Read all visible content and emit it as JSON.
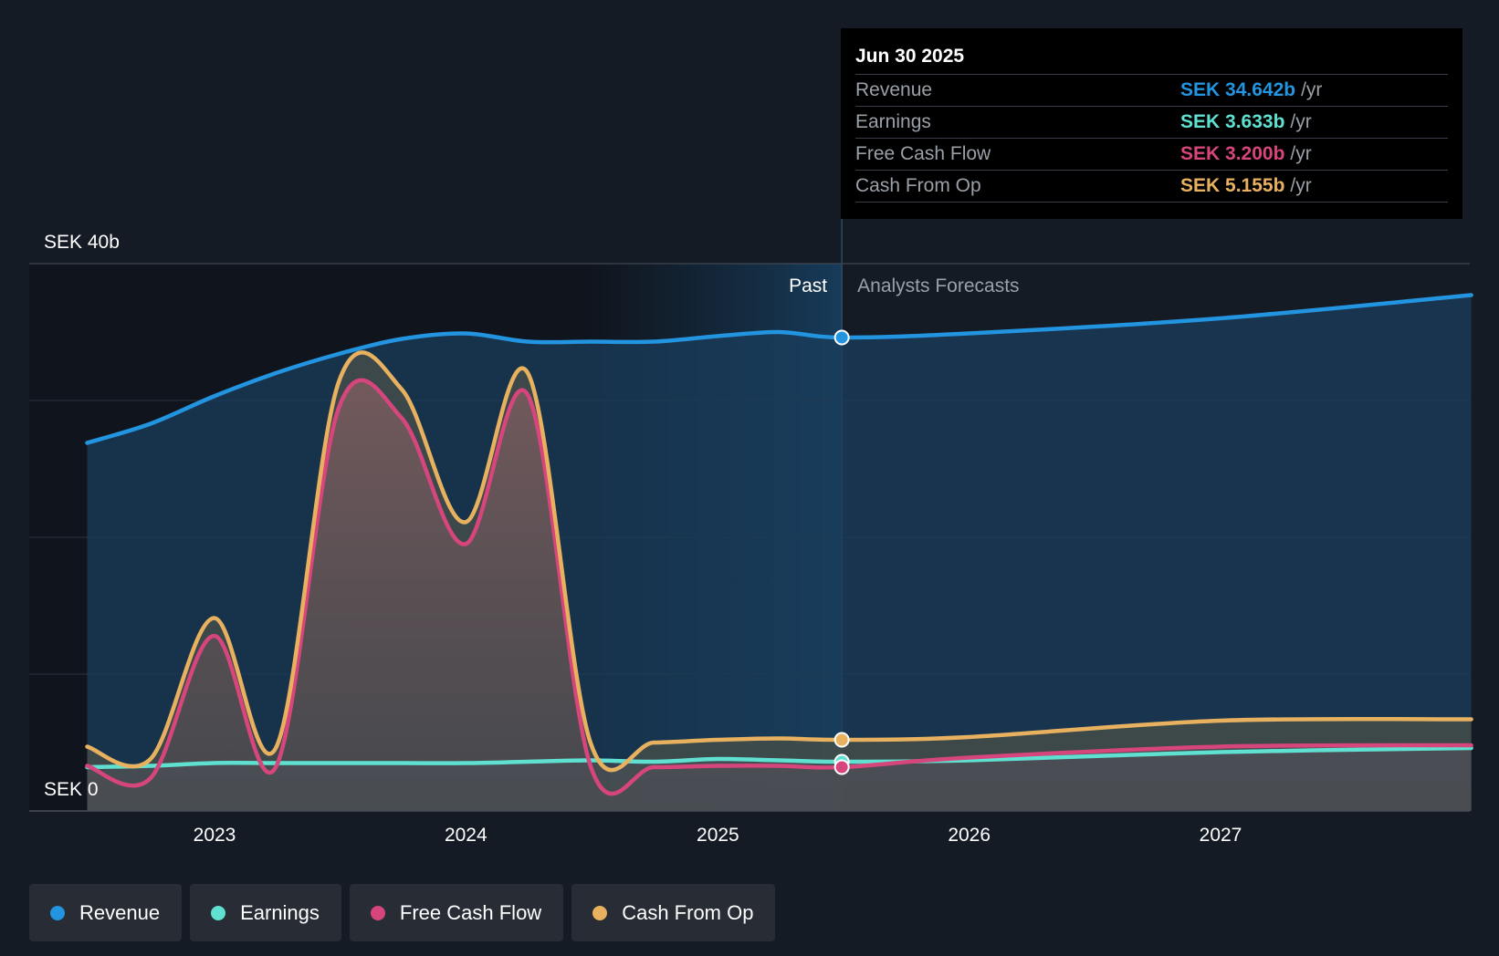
{
  "chart_data": {
    "type": "area",
    "ylim": [
      0,
      40
    ],
    "x_ticks": [
      "2023",
      "2024",
      "2025",
      "2026",
      "2027"
    ],
    "y_label_top": "SEK 40b",
    "y_label_bottom": "SEK 0",
    "past_label": "Past",
    "forecast_label": "Analysts Forecasts",
    "divider_date": "2025-06-30",
    "series": [
      {
        "name": "Revenue",
        "color": "#2394df",
        "points": [
          [
            "2022-06-30",
            26.9
          ],
          [
            "2022-09-30",
            28.3
          ],
          [
            "2022-12-31",
            30.3
          ],
          [
            "2023-03-31",
            32.0
          ],
          [
            "2023-06-30",
            33.4
          ],
          [
            "2023-09-30",
            34.5
          ],
          [
            "2023-12-31",
            34.9
          ],
          [
            "2024-03-31",
            34.3
          ],
          [
            "2024-06-30",
            34.3
          ],
          [
            "2024-09-30",
            34.3
          ],
          [
            "2024-12-31",
            34.7
          ],
          [
            "2025-03-31",
            35.0
          ],
          [
            "2025-06-30",
            34.6
          ],
          [
            "2025-12-31",
            34.9
          ],
          [
            "2026-12-31",
            36.0
          ],
          [
            "2027-12-31",
            37.7
          ]
        ]
      },
      {
        "name": "Earnings",
        "color": "#5fe0d0",
        "points": [
          [
            "2022-06-30",
            3.2
          ],
          [
            "2022-09-30",
            3.3
          ],
          [
            "2022-12-31",
            3.5
          ],
          [
            "2023-03-31",
            3.5
          ],
          [
            "2023-06-30",
            3.5
          ],
          [
            "2023-09-30",
            3.5
          ],
          [
            "2023-12-31",
            3.5
          ],
          [
            "2024-03-31",
            3.6
          ],
          [
            "2024-06-30",
            3.7
          ],
          [
            "2024-09-30",
            3.6
          ],
          [
            "2024-12-31",
            3.8
          ],
          [
            "2025-03-31",
            3.7
          ],
          [
            "2025-06-30",
            3.6
          ],
          [
            "2025-12-31",
            3.7
          ],
          [
            "2026-12-31",
            4.3
          ],
          [
            "2027-12-31",
            4.6
          ]
        ]
      },
      {
        "name": "Free Cash Flow",
        "color": "#d6457c",
        "points": [
          [
            "2022-06-30",
            3.3
          ],
          [
            "2022-09-30",
            2.4
          ],
          [
            "2022-12-31",
            12.8
          ],
          [
            "2023-03-31",
            3.2
          ],
          [
            "2023-06-30",
            29.4
          ],
          [
            "2023-09-30",
            28.7
          ],
          [
            "2023-12-31",
            19.5
          ],
          [
            "2024-03-31",
            30.4
          ],
          [
            "2024-06-30",
            3.3
          ],
          [
            "2024-09-30",
            3.2
          ],
          [
            "2024-12-31",
            3.3
          ],
          [
            "2025-03-31",
            3.3
          ],
          [
            "2025-06-30",
            3.2
          ],
          [
            "2025-12-31",
            3.9
          ],
          [
            "2026-12-31",
            4.7
          ],
          [
            "2027-12-31",
            4.8
          ]
        ]
      },
      {
        "name": "Cash From Op",
        "color": "#e8b15f",
        "points": [
          [
            "2022-06-30",
            4.7
          ],
          [
            "2022-09-30",
            3.8
          ],
          [
            "2022-12-31",
            14.1
          ],
          [
            "2023-03-31",
            4.6
          ],
          [
            "2023-06-30",
            31.3
          ],
          [
            "2023-09-30",
            30.8
          ],
          [
            "2023-12-31",
            21.1
          ],
          [
            "2024-03-31",
            32.0
          ],
          [
            "2024-06-30",
            5.0
          ],
          [
            "2024-09-30",
            5.0
          ],
          [
            "2024-12-31",
            5.2
          ],
          [
            "2025-03-31",
            5.3
          ],
          [
            "2025-06-30",
            5.2
          ],
          [
            "2025-12-31",
            5.4
          ],
          [
            "2026-12-31",
            6.6
          ],
          [
            "2027-12-31",
            6.7
          ]
        ]
      }
    ]
  },
  "tooltip": {
    "date": "Jun 30 2025",
    "rows": [
      {
        "label": "Revenue",
        "value": "SEK 34.642b",
        "unit": "/yr",
        "color": "#2394df"
      },
      {
        "label": "Earnings",
        "value": "SEK 3.633b",
        "unit": "/yr",
        "color": "#5fe0d0"
      },
      {
        "label": "Free Cash Flow",
        "value": "SEK 3.200b",
        "unit": "/yr",
        "color": "#d6457c"
      },
      {
        "label": "Cash From Op",
        "value": "SEK 5.155b",
        "unit": "/yr",
        "color": "#e8b15f"
      }
    ]
  },
  "legend": [
    {
      "label": "Revenue",
      "color": "#2394df"
    },
    {
      "label": "Earnings",
      "color": "#5fe0d0"
    },
    {
      "label": "Free Cash Flow",
      "color": "#d6457c"
    },
    {
      "label": "Cash From Op",
      "color": "#e8b15f"
    }
  ]
}
